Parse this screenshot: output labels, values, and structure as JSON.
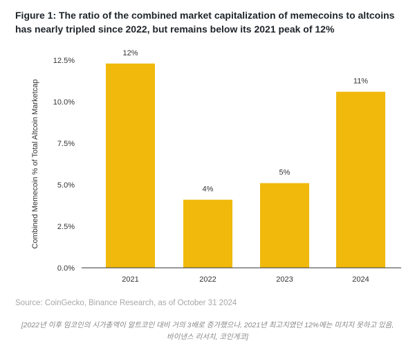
{
  "title_line1": "Figure 1: The ratio of the combined market capitalization of memecoins to altcoins has",
  "title_line2": "nearly tripled since 2022, but remains below its 2021 peak of 12%",
  "source": "Source: CoinGecko, Binance Research, as of October 31 2024",
  "caption_line1": "[2022년 이후 밈코인의 시가총액이 알트코인 대비 거의 3배로 증가했으나, 2021년 최고치였던 12%에는 미치지 못하고 있음,",
  "caption_line2": "바이낸스 리서치, 코인게코]",
  "chart_data": {
    "type": "bar",
    "categories": [
      "2021",
      "2022",
      "2023",
      "2024"
    ],
    "values": [
      12.3,
      4.1,
      5.1,
      10.6
    ],
    "data_labels": [
      "12%",
      "4%",
      "5%",
      "11%"
    ],
    "ylabel": "Combined Memecoin % of Total Altcoin Marketcap",
    "xlabel": "",
    "ylim": [
      0,
      12.5
    ],
    "yticks": [
      "0.0%",
      "2.5%",
      "5.0%",
      "7.5%",
      "10.0%",
      "12.5%"
    ],
    "grid": false,
    "bar_color": "#f0b90b"
  }
}
